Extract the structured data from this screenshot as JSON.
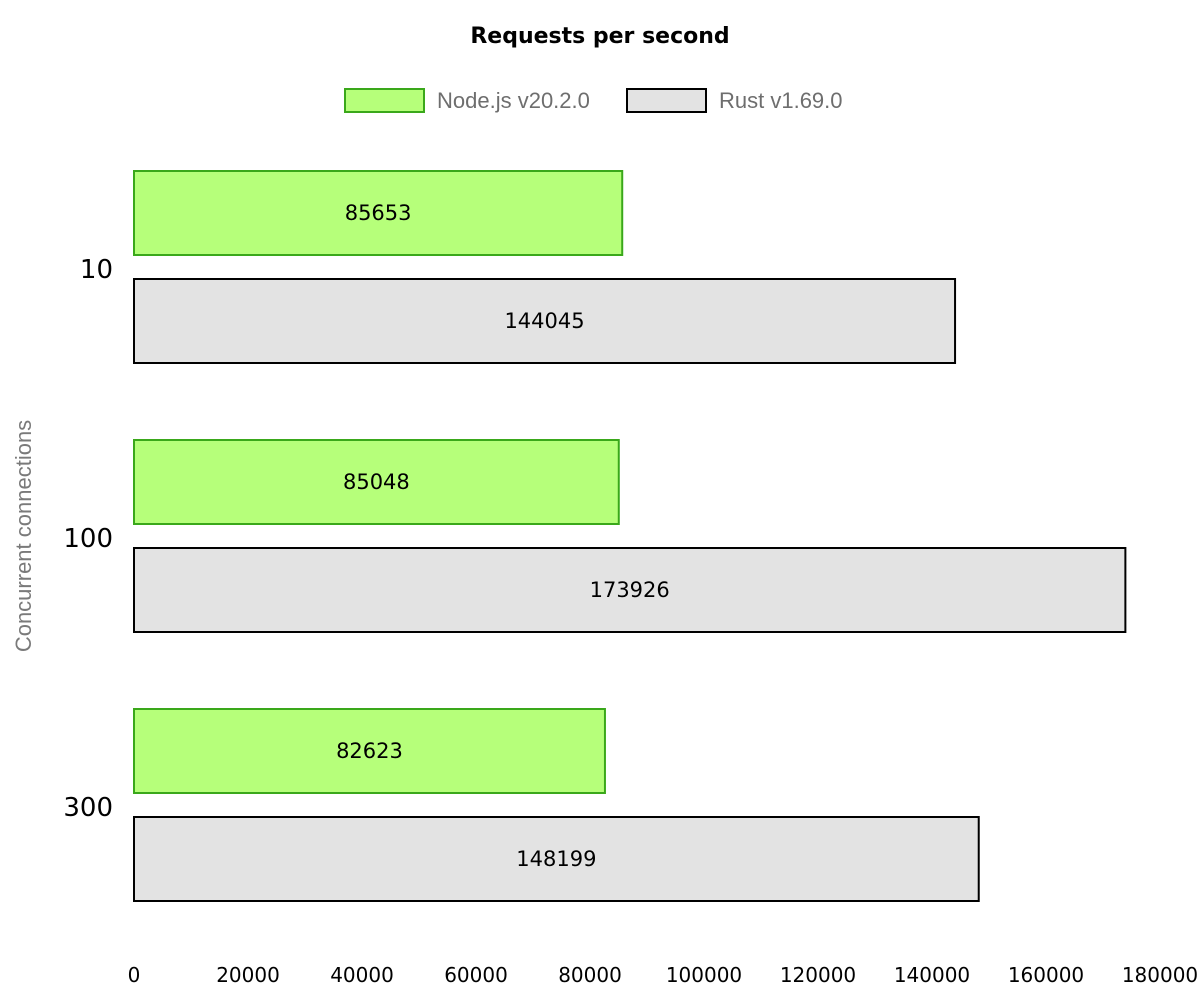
{
  "chart_data": {
    "type": "bar",
    "orientation": "horizontal",
    "title": "Requests per second",
    "xlabel": "",
    "ylabel": "Concurrent connections",
    "categories": [
      "10",
      "100",
      "300"
    ],
    "series": [
      {
        "name": "Node.js v20.2.0",
        "values": [
          85653,
          85048,
          82623
        ],
        "fill": "#b6ff7a",
        "stroke": "#3aa81a"
      },
      {
        "name": "Rust v1.69.0",
        "values": [
          144045,
          173926,
          148199
        ],
        "fill": "#e3e3e3",
        "stroke": "#000000"
      }
    ],
    "xlim": [
      0,
      180000
    ],
    "xticks": [
      0,
      20000,
      40000,
      60000,
      80000,
      100000,
      120000,
      140000,
      160000,
      180000
    ],
    "legend_position": "top",
    "grid": false,
    "data_labels": true
  }
}
